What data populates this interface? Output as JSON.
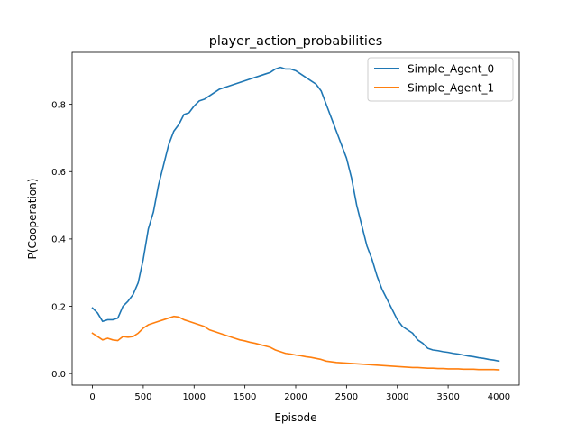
{
  "chart_data": {
    "type": "line",
    "title": "player_action_probabilities",
    "xlabel": "Episode",
    "ylabel": "P(Cooperation)",
    "xlim": [
      -200,
      4200
    ],
    "ylim": [
      -0.0345,
      0.9545
    ],
    "xticks": [
      0,
      500,
      1000,
      1500,
      2000,
      2500,
      3000,
      3500,
      4000
    ],
    "yticks": [
      0.0,
      0.2,
      0.4,
      0.6,
      0.8
    ],
    "ytick_labels": [
      "0.0",
      "0.2",
      "0.4",
      "0.6",
      "0.8"
    ],
    "grid": false,
    "legend_position": "top-right",
    "series": [
      {
        "name": "Simple_Agent_0",
        "color": "#1f77b4",
        "x": [
          0,
          50,
          100,
          150,
          200,
          250,
          300,
          350,
          400,
          450,
          500,
          550,
          600,
          650,
          700,
          750,
          800,
          850,
          900,
          950,
          1000,
          1050,
          1100,
          1150,
          1200,
          1250,
          1300,
          1350,
          1400,
          1450,
          1500,
          1550,
          1600,
          1650,
          1700,
          1750,
          1800,
          1850,
          1900,
          1950,
          2000,
          2050,
          2100,
          2150,
          2200,
          2250,
          2300,
          2350,
          2400,
          2450,
          2500,
          2550,
          2600,
          2650,
          2700,
          2750,
          2800,
          2850,
          2900,
          2950,
          3000,
          3050,
          3100,
          3150,
          3200,
          3250,
          3300,
          3350,
          3400,
          3450,
          3500,
          3550,
          3600,
          3650,
          3700,
          3750,
          3800,
          3850,
          3900,
          3950,
          4000
        ],
        "values": [
          0.195,
          0.18,
          0.155,
          0.16,
          0.16,
          0.165,
          0.2,
          0.215,
          0.235,
          0.27,
          0.34,
          0.43,
          0.48,
          0.56,
          0.62,
          0.68,
          0.72,
          0.74,
          0.77,
          0.775,
          0.795,
          0.81,
          0.815,
          0.825,
          0.835,
          0.845,
          0.85,
          0.855,
          0.86,
          0.865,
          0.87,
          0.875,
          0.88,
          0.885,
          0.89,
          0.895,
          0.905,
          0.91,
          0.905,
          0.905,
          0.9,
          0.89,
          0.88,
          0.87,
          0.86,
          0.84,
          0.8,
          0.76,
          0.72,
          0.68,
          0.64,
          0.58,
          0.5,
          0.44,
          0.38,
          0.34,
          0.29,
          0.25,
          0.22,
          0.19,
          0.16,
          0.14,
          0.13,
          0.12,
          0.1,
          0.09,
          0.075,
          0.07,
          0.068,
          0.065,
          0.063,
          0.06,
          0.058,
          0.055,
          0.052,
          0.05,
          0.047,
          0.045,
          0.042,
          0.04,
          0.037
        ]
      },
      {
        "name": "Simple_Agent_1",
        "color": "#ff7f0e",
        "x": [
          0,
          50,
          100,
          150,
          200,
          250,
          300,
          350,
          400,
          450,
          500,
          550,
          600,
          650,
          700,
          750,
          800,
          850,
          900,
          950,
          1000,
          1050,
          1100,
          1150,
          1200,
          1250,
          1300,
          1350,
          1400,
          1450,
          1500,
          1550,
          1600,
          1650,
          1700,
          1750,
          1800,
          1850,
          1900,
          1950,
          2000,
          2050,
          2100,
          2150,
          2200,
          2250,
          2300,
          2350,
          2400,
          2450,
          2500,
          2550,
          2600,
          2650,
          2700,
          2750,
          2800,
          2850,
          2900,
          2950,
          3000,
          3050,
          3100,
          3150,
          3200,
          3250,
          3300,
          3350,
          3400,
          3450,
          3500,
          3550,
          3600,
          3650,
          3700,
          3750,
          3800,
          3850,
          3900,
          3950,
          4000
        ],
        "values": [
          0.12,
          0.11,
          0.1,
          0.105,
          0.1,
          0.098,
          0.11,
          0.108,
          0.11,
          0.12,
          0.135,
          0.145,
          0.15,
          0.155,
          0.16,
          0.165,
          0.17,
          0.168,
          0.16,
          0.155,
          0.15,
          0.145,
          0.14,
          0.13,
          0.125,
          0.12,
          0.115,
          0.11,
          0.105,
          0.1,
          0.097,
          0.093,
          0.09,
          0.086,
          0.082,
          0.078,
          0.07,
          0.065,
          0.06,
          0.058,
          0.055,
          0.053,
          0.05,
          0.048,
          0.045,
          0.042,
          0.037,
          0.035,
          0.033,
          0.032,
          0.031,
          0.03,
          0.029,
          0.028,
          0.027,
          0.026,
          0.025,
          0.024,
          0.023,
          0.022,
          0.021,
          0.02,
          0.019,
          0.018,
          0.018,
          0.017,
          0.016,
          0.016,
          0.015,
          0.015,
          0.014,
          0.014,
          0.014,
          0.013,
          0.013,
          0.013,
          0.012,
          0.012,
          0.012,
          0.012,
          0.011
        ]
      }
    ]
  }
}
